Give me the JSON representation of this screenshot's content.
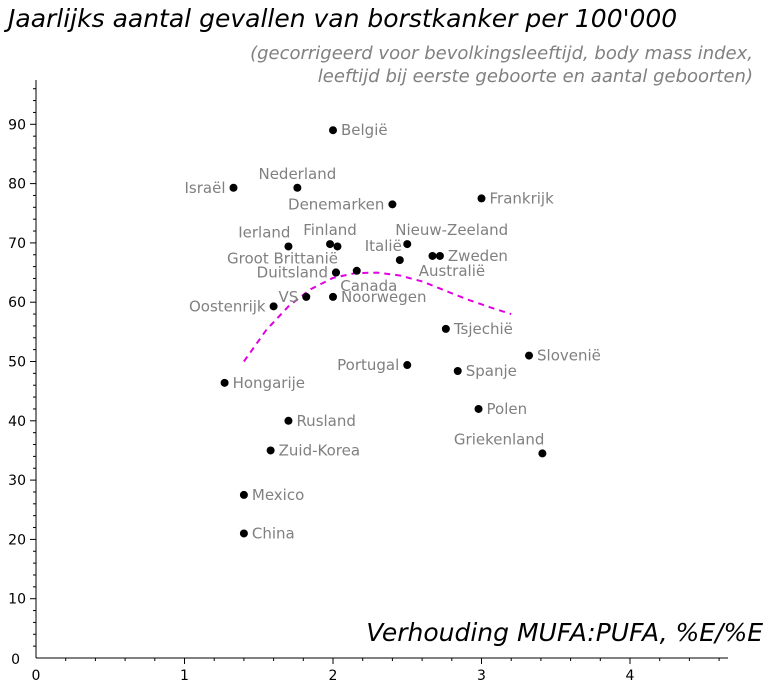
{
  "chart_data": {
    "type": "scatter",
    "title": "Jaarlijks aantal gevallen van borstkanker per 100'000",
    "subtitle": "(gecorrigeerd voor bevolkingsleeftijd, body mass index, leeftijd bij eerste geboorte en aantal geboorten)",
    "xlabel": "Verhouding  MUFA:PUFA, %E/%E",
    "ylabel": "",
    "xlim": [
      0,
      4.7
    ],
    "ylim": [
      0,
      97
    ],
    "xticks": [
      0,
      1,
      2,
      3,
      4
    ],
    "yticks": [
      10,
      20,
      30,
      40,
      50,
      60,
      70,
      80,
      90
    ],
    "grid": false,
    "colors": {
      "point": "#000000",
      "label": "#808080",
      "trend": "#e000e0"
    },
    "points": [
      {
        "name": "België",
        "x": 2.0,
        "y": 89.0,
        "pos": "right"
      },
      {
        "name": "Israël",
        "x": 1.33,
        "y": 79.3,
        "pos": "left"
      },
      {
        "name": "Nederland",
        "x": 1.76,
        "y": 79.3,
        "pos": "above"
      },
      {
        "name": "Frankrijk",
        "x": 3.0,
        "y": 77.5,
        "pos": "right"
      },
      {
        "name": "Denemarken",
        "x": 2.4,
        "y": 76.5,
        "pos": "left"
      },
      {
        "name": "Ierland",
        "x": 1.7,
        "y": 69.4,
        "pos": "above-left"
      },
      {
        "name": "Finland",
        "x": 1.98,
        "y": 69.8,
        "pos": "above"
      },
      {
        "name": "Finland-2",
        "x": 2.03,
        "y": 69.4,
        "pos": "none"
      },
      {
        "name": "Nieuw-Zeeland",
        "x": 2.5,
        "y": 69.8,
        "pos": "above-right"
      },
      {
        "name": "Italië",
        "x": 2.45,
        "y": 67.1,
        "pos": "above-left"
      },
      {
        "name": "Zweden",
        "x": 2.67,
        "y": 67.8,
        "pos": "none"
      },
      {
        "name": "Zweden-2",
        "x": 2.72,
        "y": 67.8,
        "pos": "right"
      },
      {
        "name": "Australië",
        "x": 2.72,
        "y": 67.8,
        "pos": "below"
      },
      {
        "name": "Groot Brittanië",
        "x": 2.02,
        "y": 65.0,
        "pos": "above-left"
      },
      {
        "name": "Duitsland",
        "x": 2.02,
        "y": 65.0,
        "pos": "left"
      },
      {
        "name": "Canada",
        "x": 2.16,
        "y": 65.3,
        "pos": "below"
      },
      {
        "name": "VS",
        "x": 1.82,
        "y": 60.9,
        "pos": "left"
      },
      {
        "name": "Noorwegen",
        "x": 2.0,
        "y": 60.9,
        "pos": "right"
      },
      {
        "name": "Oostenrijk",
        "x": 1.6,
        "y": 59.3,
        "pos": "left"
      },
      {
        "name": "Tsjechië",
        "x": 2.76,
        "y": 55.5,
        "pos": "right"
      },
      {
        "name": "Slovenië",
        "x": 3.32,
        "y": 51.0,
        "pos": "right"
      },
      {
        "name": "Portugal",
        "x": 2.5,
        "y": 49.4,
        "pos": "left"
      },
      {
        "name": "Spanje",
        "x": 2.84,
        "y": 48.4,
        "pos": "right"
      },
      {
        "name": "Hongarije",
        "x": 1.27,
        "y": 46.4,
        "pos": "right"
      },
      {
        "name": "Polen",
        "x": 2.98,
        "y": 42.0,
        "pos": "right"
      },
      {
        "name": "Rusland",
        "x": 1.7,
        "y": 40.0,
        "pos": "right"
      },
      {
        "name": "Griekenland",
        "x": 3.41,
        "y": 34.5,
        "pos": "above-left"
      },
      {
        "name": "Zuid-Korea",
        "x": 1.58,
        "y": 35.0,
        "pos": "right"
      },
      {
        "name": "Mexico",
        "x": 1.4,
        "y": 27.5,
        "pos": "right"
      },
      {
        "name": "China",
        "x": 1.4,
        "y": 21.0,
        "pos": "right"
      }
    ],
    "trend": {
      "style": "dashed",
      "x": [
        1.4,
        1.55,
        1.7,
        1.85,
        2.0,
        2.15,
        2.3,
        2.45,
        2.6,
        2.75,
        2.9,
        3.05,
        3.2
      ],
      "y": [
        50.0,
        55.3,
        59.3,
        62.2,
        64.1,
        64.9,
        65.0,
        64.5,
        63.5,
        62.0,
        60.5,
        59.2,
        58.0
      ]
    }
  }
}
